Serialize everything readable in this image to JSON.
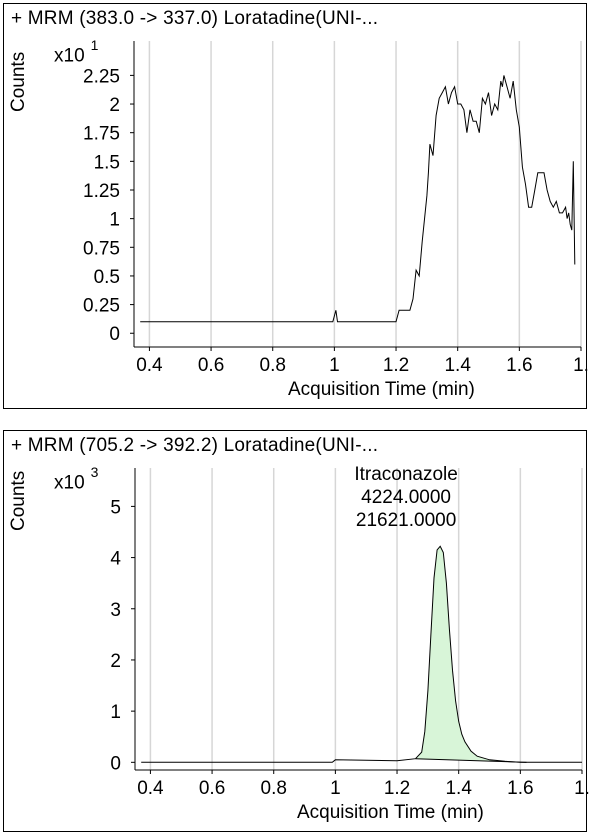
{
  "chart_data": [
    {
      "type": "line",
      "title": "+ MRM (383.0 -> 337.0) Loratadine(UNI-...",
      "ylabel": "Counts",
      "multiplier": "x10",
      "multiplier_exp": "1",
      "xlabel": "Acquisition Time (min)",
      "xlim": [
        0.35,
        1.8
      ],
      "ylim": [
        -0.12,
        2.55
      ],
      "xticks": [
        0.4,
        0.6,
        0.8,
        1,
        1.2,
        1.4,
        1.6,
        1.8
      ],
      "xtick_labels": [
        "0.4",
        "0.6",
        "0.8",
        "1",
        "1.2",
        "1.4",
        "1.6",
        "1."
      ],
      "yticks": [
        0,
        0.25,
        0.5,
        0.75,
        1,
        1.25,
        1.5,
        1.75,
        2,
        2.25
      ],
      "ytick_labels": [
        "0",
        "0.25",
        "0.5",
        "0.75",
        "1",
        "1.25",
        "1.5",
        "1.75",
        "2",
        "2.25"
      ],
      "grid": true,
      "series": [
        {
          "x": [
            0.37,
            0.995,
            1.005,
            1.01,
            1.015,
            1.2,
            1.21,
            1.245,
            1.255,
            1.265,
            1.275,
            1.285,
            1.3,
            1.305,
            1.31,
            1.32,
            1.33,
            1.34,
            1.35,
            1.36,
            1.37,
            1.38,
            1.39,
            1.4,
            1.41,
            1.42,
            1.43,
            1.44,
            1.45,
            1.46,
            1.47,
            1.48,
            1.49,
            1.5,
            1.51,
            1.52,
            1.53,
            1.54,
            1.545,
            1.55,
            1.56,
            1.57,
            1.58,
            1.59,
            1.6,
            1.61,
            1.62,
            1.63,
            1.64,
            1.65,
            1.66,
            1.67,
            1.68,
            1.69,
            1.7,
            1.71,
            1.72,
            1.73,
            1.74,
            1.75,
            1.755,
            1.76,
            1.765,
            1.77,
            1.775,
            1.78
          ],
          "y": [
            0.1,
            0.1,
            0.2,
            0.1,
            0.1,
            0.1,
            0.2,
            0.2,
            0.3,
            0.55,
            0.5,
            0.8,
            1.2,
            1.4,
            1.65,
            1.55,
            1.9,
            2.05,
            2.1,
            2.15,
            2.0,
            2.1,
            2.15,
            2.0,
            2.0,
            1.95,
            1.75,
            1.95,
            1.85,
            1.85,
            1.75,
            2.05,
            2.0,
            2.1,
            1.9,
            2.0,
            1.95,
            2.2,
            2.15,
            2.25,
            2.15,
            2.05,
            2.2,
            1.95,
            1.8,
            1.45,
            1.3,
            1.1,
            1.1,
            1.25,
            1.4,
            1.4,
            1.4,
            1.25,
            1.15,
            1.1,
            1.15,
            1.05,
            1.05,
            1.1,
            1.0,
            1.05,
            0.95,
            0.9,
            1.5,
            0.6
          ]
        }
      ]
    },
    {
      "type": "area",
      "title": "+ MRM (705.2 -> 392.2) Loratadine(UNI-...",
      "ylabel": "Counts",
      "multiplier": "x10",
      "multiplier_exp": "3",
      "xlabel": "Acquisition Time (min)",
      "xlim": [
        0.35,
        1.8
      ],
      "ylim": [
        -0.15,
        5.75
      ],
      "xticks": [
        0.4,
        0.6,
        0.8,
        1,
        1.2,
        1.4,
        1.6,
        1.8
      ],
      "xtick_labels": [
        "0.4",
        "0.6",
        "0.8",
        "1",
        "1.2",
        "1.4",
        "1.6",
        "1."
      ],
      "yticks": [
        0,
        1,
        2,
        3,
        4,
        5
      ],
      "ytick_labels": [
        "0",
        "1",
        "2",
        "3",
        "4",
        "5"
      ],
      "grid": true,
      "annotation": [
        "Itraconazole",
        "4224.0000",
        "21621.0000"
      ],
      "fill_color": "#d8f5d8",
      "series": [
        {
          "x": [
            0.37,
            0.99,
            1.0,
            1.2,
            1.26,
            1.28,
            1.29,
            1.3,
            1.31,
            1.32,
            1.33,
            1.34,
            1.35,
            1.36,
            1.37,
            1.38,
            1.39,
            1.4,
            1.41,
            1.42,
            1.44,
            1.46,
            1.5,
            1.55,
            1.6,
            1.8
          ],
          "y": [
            0.0,
            0.0,
            0.05,
            0.03,
            0.07,
            0.2,
            0.6,
            1.4,
            2.5,
            3.6,
            4.15,
            4.22,
            4.1,
            3.5,
            2.6,
            1.8,
            1.2,
            0.8,
            0.55,
            0.4,
            0.22,
            0.12,
            0.05,
            0.02,
            0.0,
            0.0
          ]
        }
      ],
      "baseline": {
        "x": [
          1.26,
          1.62
        ],
        "y": [
          0.07,
          0.0
        ]
      }
    }
  ]
}
